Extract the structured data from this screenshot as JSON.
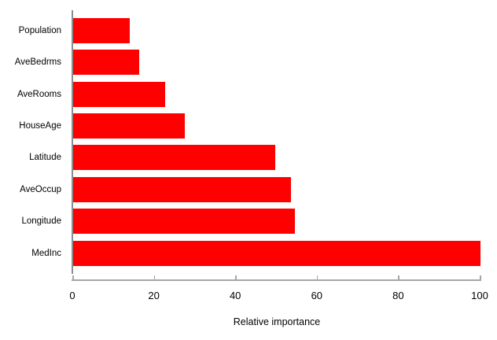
{
  "chart_data": {
    "type": "bar",
    "orientation": "horizontal",
    "title": "",
    "xlabel": "Relative importance",
    "ylabel": "",
    "categories": [
      "Population",
      "AveBedrms",
      "AveRooms",
      "HouseAge",
      "Latitude",
      "AveOccup",
      "Longitude",
      "MedInc"
    ],
    "values": [
      13.8,
      16.2,
      22.6,
      27.4,
      49.7,
      53.4,
      54.4,
      100
    ],
    "xticks": [
      0,
      20,
      40,
      60,
      80,
      100
    ],
    "xlim": [
      0,
      100
    ],
    "grid": false,
    "legend": false,
    "bar_color": "#ff0000",
    "axis_color": "#a6a6a6",
    "text_color": "#000000",
    "background_color": "#ffffff"
  }
}
